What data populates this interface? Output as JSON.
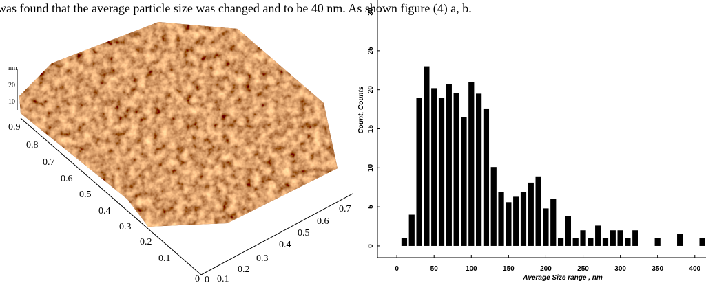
{
  "text": "was found that the average particle size was changed and to be 40 nm. As shown figure (4) a, b.",
  "afm": {
    "z_unit": "nm",
    "z_ticks": [
      "20",
      "10"
    ],
    "y_ticks": [
      "0.9",
      "0.8",
      "0.7",
      "0.6",
      "0.5",
      "0.4",
      "0.3",
      "0.2",
      "0.1",
      "0"
    ],
    "x_ticks": [
      "0",
      "0.1",
      "0.2",
      "0.3",
      "0.4",
      "0.5",
      "0.6",
      "0.7"
    ]
  },
  "chart_data": {
    "type": "histogram",
    "x_label": "Average Size range , nm",
    "y_label": "Count, Counts",
    "bins": [
      5,
      15,
      25,
      35,
      45,
      55,
      65,
      75,
      85,
      95,
      105,
      115,
      125,
      135,
      145,
      155,
      165,
      175,
      185,
      195,
      205,
      215,
      225,
      235,
      245,
      255,
      265,
      275,
      285,
      295,
      305,
      315,
      325,
      335,
      345,
      355,
      365,
      375,
      385,
      395,
      405,
      415
    ],
    "values": [
      1,
      4,
      19,
      23,
      20.2,
      19,
      20.7,
      19.6,
      16.5,
      21,
      19.5,
      17.6,
      10.1,
      6.9,
      5.6,
      6.3,
      6.9,
      8.1,
      8.9,
      4.8,
      6,
      1,
      3.8,
      1,
      2,
      1,
      2.6,
      1,
      2,
      2,
      1,
      2,
      0,
      0,
      1,
      0,
      0,
      1.5,
      0,
      0,
      1
    ],
    "color": "#000000",
    "xlim": [
      -26,
      415
    ],
    "ylim": [
      -1.5,
      31.5
    ],
    "xticks": [
      0,
      50,
      100,
      150,
      200,
      250,
      300,
      350,
      400
    ],
    "yticks": [
      0,
      5,
      10,
      15,
      20,
      25,
      30
    ]
  }
}
